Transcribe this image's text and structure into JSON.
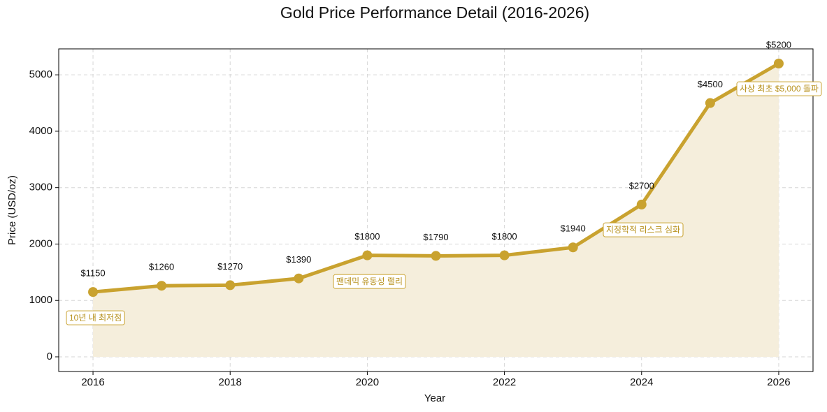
{
  "chart_data": {
    "type": "line",
    "title": "Gold Price Performance Detail (2016-2026)",
    "x_label": "Year",
    "y_label": "Price (USD/oz)",
    "x": [
      2016,
      2017,
      2018,
      2019,
      2020,
      2021,
      2022,
      2023,
      2024,
      2025,
      2026
    ],
    "values": [
      1150,
      1260,
      1270,
      1390,
      1800,
      1790,
      1800,
      1940,
      2700,
      4500,
      5200
    ],
    "value_labels": [
      "$1150",
      "$1260",
      "$1270",
      "$1390",
      "$1800",
      "$1790",
      "$1800",
      "$1940",
      "$2700",
      "$4500",
      "$5200"
    ],
    "color": "#c9a22f",
    "fill_color": "#f5eedc",
    "xlim": [
      2015.5,
      2026.5
    ],
    "xticks": [
      2016,
      2018,
      2020,
      2022,
      2024,
      2026
    ],
    "ylim": [
      -260,
      5460
    ],
    "yticks": [
      0,
      1000,
      2000,
      3000,
      4000,
      5000
    ],
    "grid": true,
    "annotations": [
      "10년 내 최저점",
      "팬데믹 유동성 랠리",
      "지정학적 리스크 심화",
      "사상 최초 $5,000 돌파"
    ]
  }
}
